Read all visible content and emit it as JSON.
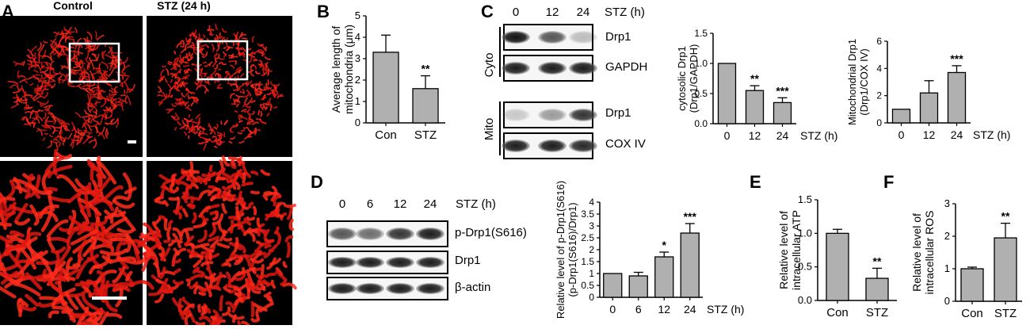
{
  "panel_a": {
    "letter": "A",
    "col_labels": [
      "Control",
      "STZ (24 h)"
    ]
  },
  "blots_c": {
    "letter": "C",
    "lanes": [
      "0",
      "12",
      "24"
    ],
    "treatment": "STZ (h)",
    "fractions": [
      {
        "label": "Cyto",
        "rows": [
          "Drp1",
          "GAPDH"
        ]
      },
      {
        "label": "Mito",
        "rows": [
          "Drp1",
          "COX IV"
        ]
      }
    ]
  },
  "blots_d": {
    "letter": "D",
    "lanes": [
      "0",
      "6",
      "12",
      "24"
    ],
    "treatment": "STZ (h)",
    "rows": [
      "p-Drp1(S616)",
      "Drp1",
      "β-actin"
    ]
  },
  "chart_data": [
    {
      "id": "B",
      "type": "bar",
      "letter": "B",
      "categories": [
        "Con",
        "STZ"
      ],
      "values": [
        3.3,
        1.6
      ],
      "errors": [
        0.8,
        0.6
      ],
      "significance": [
        "",
        "**"
      ],
      "ylabel_lines": [
        "Average length of",
        "mitochondria (μm)"
      ],
      "ylim": [
        0,
        5
      ],
      "yticks": [
        "0",
        "1",
        "2",
        "3",
        "4",
        "5"
      ],
      "unit": ""
    },
    {
      "id": "C1",
      "type": "bar",
      "letter": "",
      "categories": [
        "0",
        "12",
        "24"
      ],
      "values": [
        1.0,
        0.55,
        0.35
      ],
      "errors": [
        0.0,
        0.08,
        0.08
      ],
      "significance": [
        "",
        "**",
        "***"
      ],
      "ylabel_lines": [
        "cytosolic Drp1",
        "(Drp1/GAPDH)"
      ],
      "ylim": [
        0,
        1.5
      ],
      "yticks": [
        "0.0",
        "0.5",
        "1.0",
        "1.5"
      ],
      "unit": "STZ (h)"
    },
    {
      "id": "C2",
      "type": "bar",
      "letter": "",
      "categories": [
        "0",
        "12",
        "24"
      ],
      "values": [
        1.0,
        2.2,
        3.7
      ],
      "errors": [
        0.0,
        0.9,
        0.5
      ],
      "significance": [
        "",
        "",
        "***"
      ],
      "ylabel_lines": [
        "Mitochondrial Drp1",
        "(Drp1/COX IV)"
      ],
      "ylim": [
        0,
        6
      ],
      "yticks": [
        "0",
        "2",
        "4",
        "6"
      ],
      "unit": "STZ (h)"
    },
    {
      "id": "D1",
      "type": "bar",
      "letter": "",
      "categories": [
        "0",
        "6",
        "12",
        "24"
      ],
      "values": [
        1.0,
        0.9,
        1.7,
        2.7
      ],
      "errors": [
        0.0,
        0.15,
        0.2,
        0.4
      ],
      "significance": [
        "",
        "",
        "*",
        "***"
      ],
      "ylabel_lines": [
        "Relative level of p-Drp1(S616)",
        "(p-Drp1(S616)/Drp1)"
      ],
      "ylim": [
        0,
        4
      ],
      "yticks": [
        "0",
        "0.5",
        "1",
        "1.5",
        "2",
        "2.5",
        "3",
        "3.5",
        "4"
      ],
      "unit": "STZ (h)"
    },
    {
      "id": "E",
      "type": "bar",
      "letter": "E",
      "categories": [
        "Con",
        "STZ"
      ],
      "values": [
        1.0,
        0.33
      ],
      "errors": [
        0.06,
        0.15
      ],
      "significance": [
        "",
        "**"
      ],
      "ylabel_lines": [
        "Relative level of",
        "intracellular ATP"
      ],
      "ylim": [
        0,
        1.5
      ],
      "yticks": [
        "0.0",
        "0.5",
        "1.0",
        "1.5"
      ],
      "unit": ""
    },
    {
      "id": "F",
      "type": "bar",
      "letter": "F",
      "categories": [
        "Con",
        "STZ"
      ],
      "values": [
        1.0,
        1.95
      ],
      "errors": [
        0.05,
        0.45
      ],
      "significance": [
        "",
        "**"
      ],
      "ylabel_lines": [
        "Relative level of",
        "intracellular ROS"
      ],
      "ylim": [
        0,
        3
      ],
      "yticks": [
        "0",
        "1",
        "2",
        "3"
      ],
      "unit": ""
    }
  ]
}
